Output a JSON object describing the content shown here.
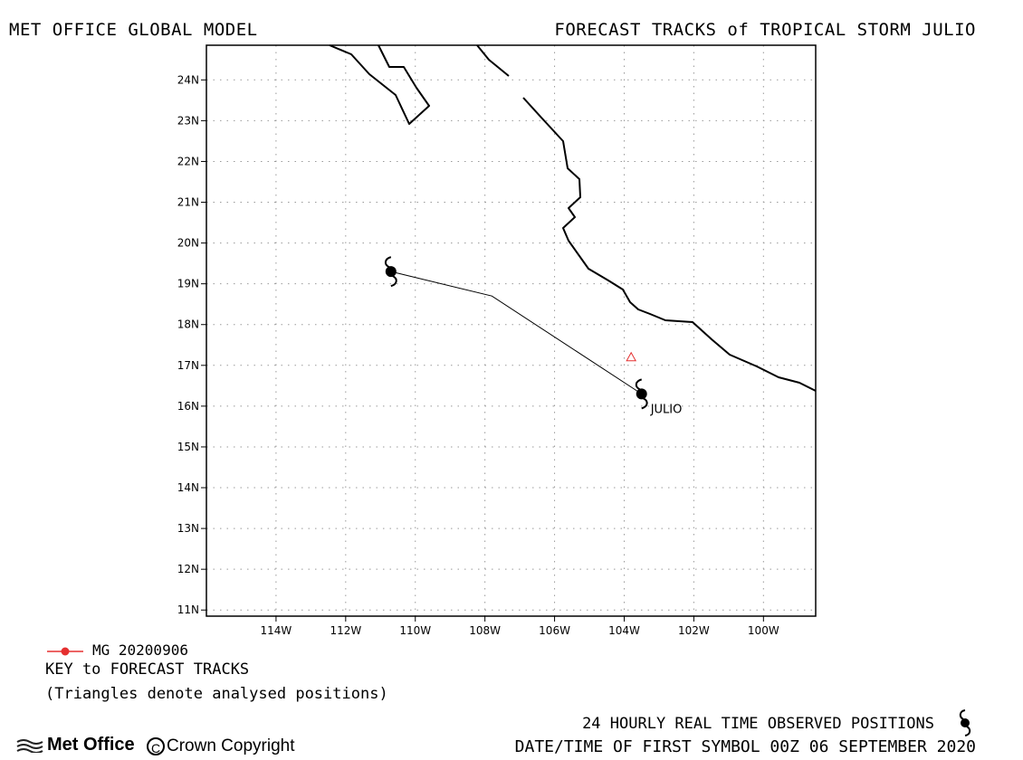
{
  "header": {
    "left_title": "MET OFFICE GLOBAL MODEL",
    "right_title": "FORECAST TRACKS of TROPICAL STORM JULIO"
  },
  "map": {
    "lon_range": [
      -116,
      -98.5
    ],
    "lat_range": [
      10.85,
      24.85
    ],
    "lat_ticks": [
      "24N",
      "23N",
      "22N",
      "21N",
      "20N",
      "19N",
      "18N",
      "17N",
      "16N",
      "15N",
      "14N",
      "13N",
      "12N",
      "11N"
    ],
    "lat_tick_values": [
      24,
      23,
      22,
      21,
      20,
      19,
      18,
      17,
      16,
      15,
      14,
      13,
      12,
      11
    ],
    "lon_ticks": [
      "114W",
      "112W",
      "110W",
      "108W",
      "106W",
      "104W",
      "102W",
      "100W"
    ],
    "lon_tick_values": [
      -114,
      -112,
      -110,
      -108,
      -106,
      -104,
      -102,
      -100
    ],
    "gridlines": true,
    "storm_label": "JULIO",
    "forecast_track": [
      {
        "lon": -103.5,
        "lat": 16.3
      },
      {
        "lon": -107.8,
        "lat": 18.7
      },
      {
        "lon": -110.7,
        "lat": 19.3
      }
    ],
    "storm_symbols": [
      {
        "lon": -103.5,
        "lat": 16.3
      },
      {
        "lon": -110.7,
        "lat": 19.3
      }
    ],
    "analysed_positions": [
      {
        "lon": -103.8,
        "lat": 17.2
      }
    ],
    "colors": {
      "coast": "#000000",
      "track": "#000000",
      "grid": "#999999",
      "analysed_triangle": "#e53030",
      "key_marker": "#e53030"
    }
  },
  "key": {
    "track_label": "MG 20200906",
    "title": "KEY to FORECAST TRACKS",
    "note": "(Triangles denote analysed positions)"
  },
  "footer": {
    "observed": "24 HOURLY REAL TIME OBSERVED POSITIONS",
    "datetime": "DATE/TIME OF FIRST SYMBOL 00Z 06 SEPTEMBER 2020",
    "logo_text": "Met Office",
    "copyright": "Crown Copyright"
  }
}
